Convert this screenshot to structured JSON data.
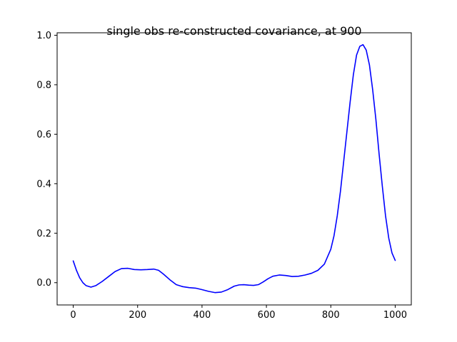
{
  "chart_data": {
    "type": "line",
    "title": "single obs re-constructed covariance, at 900",
    "xlabel": "",
    "ylabel": "",
    "xlim": [
      -50,
      1050
    ],
    "ylim": [
      -0.09,
      1.01
    ],
    "x_ticks": [
      0,
      200,
      400,
      600,
      800,
      1000
    ],
    "x_tick_labels": [
      "0",
      "200",
      "400",
      "600",
      "800",
      "1000"
    ],
    "y_ticks": [
      0.0,
      0.2,
      0.4,
      0.6,
      0.8,
      1.0
    ],
    "y_tick_labels": [
      "0.0",
      "0.2",
      "0.4",
      "0.6",
      "0.8",
      "1.0"
    ],
    "grid": false,
    "legend": "none",
    "series": [
      {
        "color": "#0000ff",
        "x": [
          0,
          10,
          20,
          30,
          40,
          55,
          70,
          90,
          110,
          130,
          150,
          170,
          190,
          210,
          230,
          250,
          265,
          280,
          300,
          320,
          340,
          360,
          380,
          400,
          420,
          440,
          460,
          480,
          500,
          515,
          530,
          545,
          560,
          575,
          590,
          605,
          620,
          640,
          660,
          680,
          700,
          720,
          740,
          760,
          780,
          800,
          810,
          820,
          830,
          840,
          850,
          860,
          870,
          880,
          890,
          900,
          910,
          920,
          930,
          940,
          950,
          960,
          970,
          980,
          990,
          1000
        ],
        "y": [
          0.088,
          0.05,
          0.02,
          0.0,
          -0.012,
          -0.018,
          -0.012,
          0.005,
          0.025,
          0.045,
          0.057,
          0.058,
          0.053,
          0.052,
          0.053,
          0.055,
          0.05,
          0.035,
          0.012,
          -0.008,
          -0.016,
          -0.02,
          -0.022,
          -0.028,
          -0.035,
          -0.04,
          -0.038,
          -0.028,
          -0.014,
          -0.009,
          -0.008,
          -0.01,
          -0.011,
          -0.008,
          0.003,
          0.016,
          0.026,
          0.031,
          0.029,
          0.025,
          0.026,
          0.031,
          0.038,
          0.05,
          0.075,
          0.135,
          0.19,
          0.27,
          0.37,
          0.49,
          0.61,
          0.73,
          0.84,
          0.92,
          0.955,
          0.962,
          0.94,
          0.88,
          0.78,
          0.66,
          0.52,
          0.39,
          0.27,
          0.18,
          0.12,
          0.09
        ]
      }
    ]
  }
}
